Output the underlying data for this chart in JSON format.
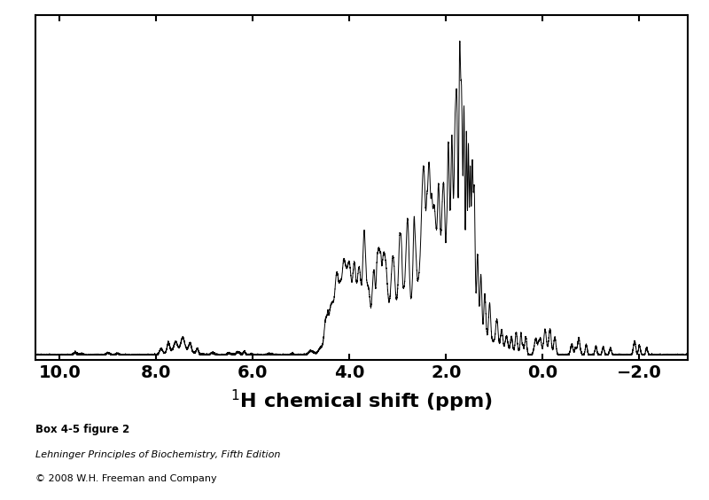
{
  "xlabel": "$^{1}$H chemical shift (ppm)",
  "xlim": [
    10.5,
    -3.0
  ],
  "ylim": [
    -0.015,
    1.05
  ],
  "xticks": [
    10.0,
    8.0,
    6.0,
    4.0,
    2.0,
    0.0,
    -2.0
  ],
  "xtick_labels": [
    "10.0",
    "8.0",
    "6.0",
    "4.0",
    "2.0",
    "0.0",
    "−2.0"
  ],
  "line_color": "#000000",
  "background_color": "#ffffff",
  "caption_line1": "Box 4-5 figure 2",
  "caption_line2": "Lehninger Principles of Biochemistry, Fifth Edition",
  "caption_line3": "© 2008 W.H. Freeman and Company",
  "figsize": [
    8.0,
    5.64
  ],
  "dpi": 100
}
